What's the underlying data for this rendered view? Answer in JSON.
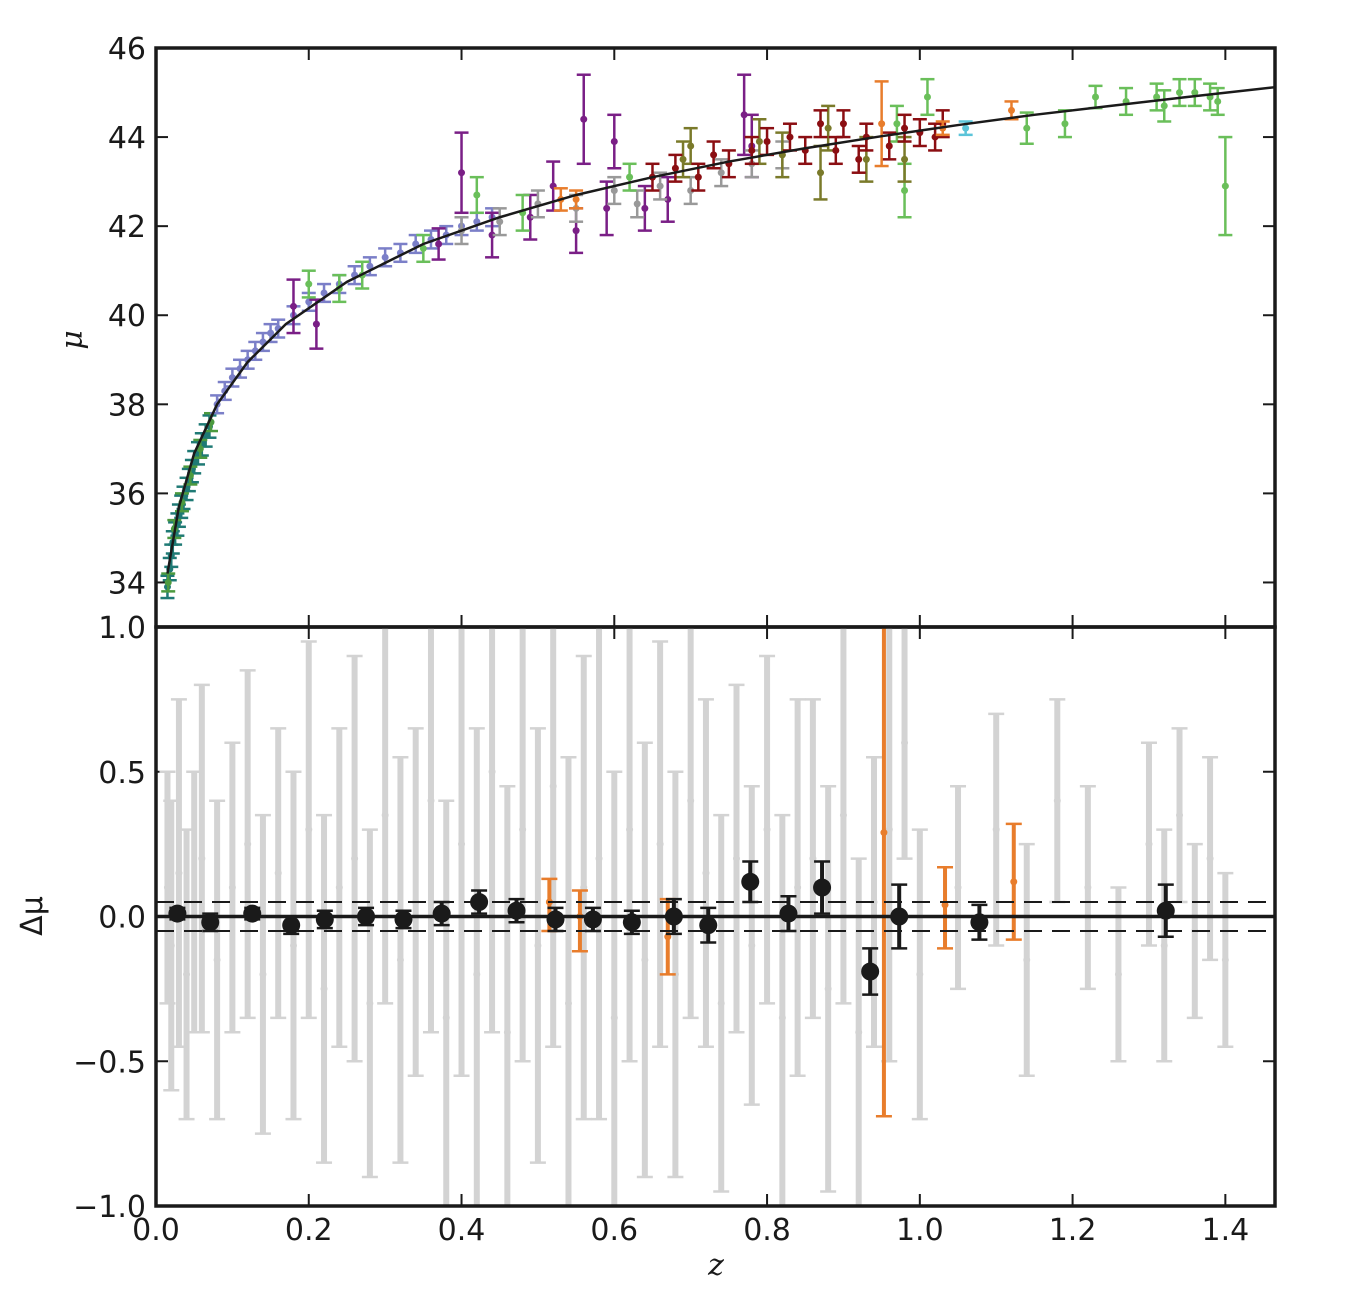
{
  "chart_data": [
    {
      "panel": "top",
      "type": "scatter",
      "xlabel": "",
      "ylabel": "μ",
      "xlim": [
        0.0,
        1.465
      ],
      "ylim": [
        33.0,
        46.0
      ],
      "yticks": [
        "34",
        "36",
        "38",
        "40",
        "42",
        "44",
        "46"
      ],
      "xticks_shown": false,
      "model_curve": {
        "description_free": true,
        "color": "#1a1a1a",
        "z": [
          0.015,
          0.03,
          0.05,
          0.08,
          0.12,
          0.17,
          0.25,
          0.35,
          0.45,
          0.55,
          0.65,
          0.75,
          0.85,
          0.95,
          1.05,
          1.15,
          1.25,
          1.35,
          1.465
        ],
        "mu": [
          34.2,
          35.7,
          36.9,
          38.0,
          38.95,
          39.8,
          40.75,
          41.6,
          42.2,
          42.7,
          43.1,
          43.45,
          43.75,
          44.02,
          44.27,
          44.5,
          44.7,
          44.9,
          45.12
        ]
      },
      "series": [
        {
          "color": "#1f7a75",
          "z": [
            0.015,
            0.018,
            0.02,
            0.022,
            0.025,
            0.028,
            0.03,
            0.033,
            0.036,
            0.04,
            0.043,
            0.047,
            0.05,
            0.055,
            0.06,
            0.065,
            0.07
          ],
          "mu": [
            33.9,
            34.3,
            34.6,
            34.9,
            35.1,
            35.3,
            35.5,
            35.7,
            35.9,
            36.1,
            36.3,
            36.5,
            36.7,
            36.9,
            37.1,
            37.3,
            37.5
          ],
          "err": [
            0.25,
            0.25,
            0.25,
            0.25,
            0.25,
            0.25,
            0.25,
            0.25,
            0.25,
            0.25,
            0.25,
            0.25,
            0.25,
            0.25,
            0.25,
            0.25,
            0.25
          ]
        },
        {
          "color": "#4c9a3f",
          "z": [
            0.016,
            0.024,
            0.034,
            0.045,
            0.058,
            0.072
          ],
          "mu": [
            34.0,
            35.2,
            35.8,
            36.4,
            37.0,
            37.6
          ],
          "err": [
            0.2,
            0.2,
            0.2,
            0.2,
            0.2,
            0.2
          ]
        },
        {
          "color": "#7b7fc8",
          "z": [
            0.08,
            0.09,
            0.1,
            0.11,
            0.12,
            0.13,
            0.14,
            0.15,
            0.16,
            0.18,
            0.2,
            0.22,
            0.24,
            0.26,
            0.28,
            0.3,
            0.32,
            0.34,
            0.36,
            0.38,
            0.4,
            0.42,
            0.44
          ],
          "mu": [
            38.0,
            38.3,
            38.6,
            38.8,
            39.0,
            39.2,
            39.4,
            39.6,
            39.7,
            40.0,
            40.3,
            40.5,
            40.7,
            40.9,
            41.1,
            41.3,
            41.4,
            41.6,
            41.7,
            41.8,
            42.0,
            42.1,
            42.2
          ],
          "err": [
            0.2,
            0.2,
            0.2,
            0.2,
            0.2,
            0.2,
            0.2,
            0.2,
            0.2,
            0.2,
            0.2,
            0.2,
            0.2,
            0.2,
            0.2,
            0.2,
            0.2,
            0.2,
            0.2,
            0.2,
            0.2,
            0.2,
            0.2
          ]
        },
        {
          "color": "#7a1f86",
          "z": [
            0.18,
            0.21,
            0.37,
            0.4,
            0.44,
            0.49,
            0.52,
            0.55,
            0.56,
            0.59,
            0.6,
            0.64,
            0.67,
            0.77,
            0.78
          ],
          "mu": [
            40.2,
            39.8,
            41.6,
            43.2,
            41.8,
            42.2,
            42.9,
            41.9,
            44.4,
            42.4,
            43.9,
            42.4,
            42.6,
            44.5,
            43.8
          ],
          "err": [
            0.6,
            0.55,
            0.35,
            0.9,
            0.5,
            0.5,
            0.55,
            0.5,
            1.0,
            0.6,
            0.6,
            0.5,
            0.5,
            0.9,
            0.7
          ]
        },
        {
          "color": "#999999",
          "z": [
            0.4,
            0.45,
            0.5,
            0.55,
            0.6,
            0.63,
            0.66,
            0.7,
            0.74,
            0.78,
            0.82
          ],
          "mu": [
            41.9,
            42.1,
            42.5,
            42.4,
            42.8,
            42.5,
            42.9,
            42.8,
            43.2,
            43.4,
            43.6
          ],
          "err": [
            0.3,
            0.3,
            0.3,
            0.3,
            0.3,
            0.3,
            0.3,
            0.3,
            0.3,
            0.3,
            0.3
          ]
        },
        {
          "color": "#6abf5a",
          "z": [
            0.2,
            0.24,
            0.27,
            0.35,
            0.42,
            0.48,
            0.62,
            0.97,
            0.98,
            1.01,
            1.14,
            1.19,
            1.23,
            1.27,
            1.31,
            1.32,
            1.34,
            1.36,
            1.38,
            1.39,
            1.4
          ],
          "mu": [
            40.7,
            40.6,
            40.9,
            41.5,
            42.7,
            42.3,
            43.1,
            44.3,
            42.8,
            44.9,
            44.2,
            44.3,
            44.9,
            44.8,
            44.9,
            44.7,
            45.0,
            45.0,
            44.9,
            44.8,
            42.9
          ],
          "err": [
            0.3,
            0.3,
            0.3,
            0.3,
            0.4,
            0.4,
            0.3,
            0.4,
            0.6,
            0.4,
            0.35,
            0.3,
            0.25,
            0.3,
            0.3,
            0.35,
            0.3,
            0.3,
            0.3,
            0.3,
            1.1
          ]
        },
        {
          "color": "#7a7a2a",
          "z": [
            0.69,
            0.7,
            0.79,
            0.82,
            0.87,
            0.88,
            0.93,
            0.98
          ],
          "mu": [
            43.5,
            43.8,
            43.9,
            43.6,
            43.2,
            44.2,
            43.5,
            43.5
          ],
          "err": [
            0.4,
            0.4,
            0.5,
            0.5,
            0.6,
            0.5,
            0.5,
            0.5
          ]
        },
        {
          "color": "#8b0e12",
          "z": [
            0.65,
            0.68,
            0.71,
            0.73,
            0.75,
            0.78,
            0.8,
            0.83,
            0.85,
            0.87,
            0.89,
            0.9,
            0.92,
            0.93,
            0.96,
            0.98,
            1.0,
            1.02,
            1.03
          ],
          "mu": [
            43.1,
            43.3,
            43.1,
            43.6,
            43.4,
            43.7,
            43.9,
            44.0,
            43.7,
            44.3,
            43.7,
            44.3,
            43.5,
            44.0,
            43.8,
            44.2,
            44.1,
            44.0,
            44.3
          ],
          "err": [
            0.3,
            0.3,
            0.3,
            0.3,
            0.3,
            0.3,
            0.3,
            0.3,
            0.3,
            0.3,
            0.3,
            0.3,
            0.3,
            0.3,
            0.3,
            0.3,
            0.3,
            0.3,
            0.3
          ]
        },
        {
          "color": "#e87d2c",
          "z": [
            0.53,
            0.55,
            0.95,
            1.03,
            1.12
          ],
          "mu": [
            42.6,
            42.6,
            44.3,
            44.2,
            44.6
          ],
          "err": [
            0.25,
            0.2,
            0.95,
            0.15,
            0.2
          ]
        },
        {
          "color": "#5bc4d9",
          "z": [
            1.06
          ],
          "mu": [
            44.2
          ],
          "err": [
            0.15
          ]
        }
      ]
    },
    {
      "panel": "bottom",
      "type": "scatter",
      "xlabel": "z",
      "ylabel": "Δμ",
      "xlim": [
        0.0,
        1.465
      ],
      "ylim": [
        -1.0,
        1.0
      ],
      "xticks": [
        "0.0",
        "0.2",
        "0.4",
        "0.6",
        "0.8",
        "1.0",
        "1.2",
        "1.4"
      ],
      "yticks": [
        "−1.0",
        "−0.5",
        "0.0",
        "0.5",
        "1.0"
      ],
      "reference_lines": {
        "solid": 0.0,
        "dashed": [
          0.05,
          -0.05
        ]
      },
      "series": [
        {
          "color": "#d3d3d3",
          "z": [
            0.015,
            0.02,
            0.03,
            0.04,
            0.05,
            0.06,
            0.08,
            0.1,
            0.12,
            0.14,
            0.16,
            0.18,
            0.2,
            0.22,
            0.24,
            0.26,
            0.28,
            0.3,
            0.32,
            0.34,
            0.36,
            0.38,
            0.4,
            0.42,
            0.44,
            0.46,
            0.48,
            0.5,
            0.52,
            0.54,
            0.56,
            0.58,
            0.6,
            0.62,
            0.64,
            0.66,
            0.68,
            0.7,
            0.72,
            0.74,
            0.76,
            0.78,
            0.8,
            0.82,
            0.84,
            0.86,
            0.88,
            0.9,
            0.92,
            0.94,
            0.96,
            0.98,
            1.0,
            1.05,
            1.1,
            1.14,
            1.18,
            1.22,
            1.26,
            1.3,
            1.32,
            1.34,
            1.36,
            1.38,
            1.4
          ],
          "dmu": [
            0.1,
            -0.1,
            0.15,
            -0.2,
            0.05,
            0.2,
            -0.15,
            0.1,
            0.25,
            -0.2,
            0.15,
            -0.1,
            0.3,
            -0.25,
            0.1,
            0.2,
            -0.3,
            0.35,
            -0.15,
            0.05,
            0.4,
            -0.35,
            0.25,
            -0.2,
            0.5,
            -0.4,
            0.3,
            -0.1,
            0.45,
            -0.3,
            0.1,
            0.2,
            -0.35,
            0.3,
            -0.15,
            0.25,
            -0.2,
            0.4,
            0.15,
            -0.3,
            0.2,
            -0.1,
            0.3,
            -0.35,
            0.1,
            0.2,
            -0.25,
            0.35,
            -0.4,
            0.05,
            0.3,
            0.6,
            -0.2,
            0.1,
            0.3,
            -0.15,
            0.4,
            0.1,
            -0.2,
            0.25,
            -0.1,
            0.35,
            -0.05,
            0.2,
            -0.15
          ],
          "err": [
            0.4,
            0.5,
            0.6,
            0.5,
            0.45,
            0.6,
            0.55,
            0.5,
            0.6,
            0.55,
            0.5,
            0.6,
            0.65,
            0.6,
            0.55,
            0.7,
            0.6,
            0.65,
            0.7,
            0.6,
            0.8,
            0.75,
            0.8,
            0.85,
            0.9,
            0.85,
            0.8,
            0.75,
            0.9,
            0.85,
            0.8,
            0.9,
            0.85,
            0.8,
            0.75,
            0.7,
            0.7,
            0.75,
            0.6,
            0.65,
            0.6,
            0.55,
            0.6,
            0.7,
            0.65,
            0.55,
            0.7,
            0.65,
            0.6,
            0.5,
            0.8,
            0.4,
            0.5,
            0.35,
            0.4,
            0.4,
            0.35,
            0.35,
            0.3,
            0.35,
            0.4,
            0.3,
            0.3,
            0.35,
            0.3
          ]
        },
        {
          "color": "#e87d2c",
          "z": [
            0.515,
            0.555,
            0.67,
            0.953,
            1.033,
            1.123
          ],
          "dmu": [
            0.05,
            0.0,
            -0.07,
            0.29,
            0.04,
            0.12
          ],
          "err_low": [
            0.1,
            0.12,
            0.13,
            0.98,
            0.15,
            0.2
          ],
          "err_high": [
            0.08,
            0.09,
            0.13,
            0.72,
            0.13,
            0.2
          ]
        },
        {
          "color": "#1a1a1a",
          "z": [
            0.028,
            0.071,
            0.126,
            0.177,
            0.221,
            0.275,
            0.324,
            0.374,
            0.423,
            0.472,
            0.523,
            0.572,
            0.623,
            0.678,
            0.723,
            0.778,
            0.828,
            0.872,
            0.935,
            0.973,
            1.078,
            1.322
          ],
          "dmu": [
            0.01,
            -0.02,
            0.01,
            -0.03,
            -0.01,
            0.0,
            -0.01,
            0.01,
            0.05,
            0.02,
            -0.01,
            -0.01,
            -0.02,
            0.0,
            -0.03,
            0.12,
            0.01,
            0.1,
            -0.19,
            0.0,
            -0.02,
            0.02
          ],
          "err": [
            0.02,
            0.03,
            0.02,
            0.03,
            0.03,
            0.03,
            0.03,
            0.04,
            0.04,
            0.04,
            0.04,
            0.04,
            0.04,
            0.06,
            0.06,
            0.07,
            0.06,
            0.09,
            0.08,
            0.11,
            0.06,
            0.09
          ]
        }
      ]
    }
  ]
}
